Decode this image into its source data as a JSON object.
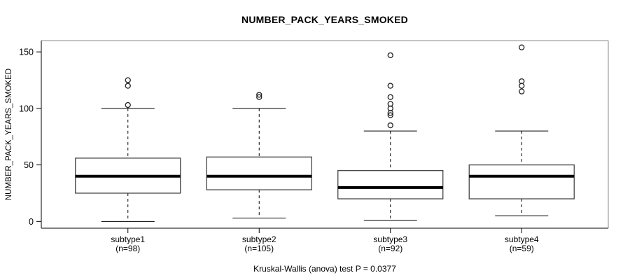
{
  "title": "NUMBER_PACK_YEARS_SMOKED",
  "caption": "Kruskal-Wallis (anova) test P = 0.0377",
  "colors": {
    "background": "#ffffff",
    "text": "#000000",
    "frame_dark": "#000000",
    "frame_light": "#888888",
    "box_stroke": "#444444",
    "median": "#000000",
    "outlier_stroke": "#222222"
  },
  "chart_data": {
    "type": "boxplot",
    "title": "NUMBER_PACK_YEARS_SMOKED",
    "xlabel": "",
    "ylabel": "NUMBER_PACK_YEARS_SMOKED",
    "yticks": [
      0,
      50,
      100,
      150
    ],
    "ylim": [
      -6,
      160
    ],
    "grid": false,
    "whisker_linestyle": "dashed",
    "annotation": "Kruskal-Wallis (anova) test P = 0.0377",
    "groups": [
      {
        "label": "subtype1",
        "n_label": "(n=98)",
        "n": 98,
        "whisker_low": 0,
        "q1": 25,
        "median": 40,
        "q3": 56,
        "whisker_high": 100,
        "outliers": [
          103,
          120,
          125
        ]
      },
      {
        "label": "subtype2",
        "n_label": "(n=105)",
        "n": 105,
        "whisker_low": 3,
        "q1": 28,
        "median": 40,
        "q3": 57,
        "whisker_high": 100,
        "outliers": [
          110,
          112
        ]
      },
      {
        "label": "subtype3",
        "n_label": "(n=92)",
        "n": 92,
        "whisker_low": 1,
        "q1": 20,
        "median": 30,
        "q3": 45,
        "whisker_high": 80,
        "outliers": [
          85,
          94,
          96,
          100,
          104,
          110,
          120,
          147
        ]
      },
      {
        "label": "subtype4",
        "n_label": "(n=59)",
        "n": 59,
        "whisker_low": 5,
        "q1": 20,
        "median": 40,
        "q3": 50,
        "whisker_high": 80,
        "outliers": [
          115,
          120,
          124,
          154
        ]
      }
    ]
  }
}
